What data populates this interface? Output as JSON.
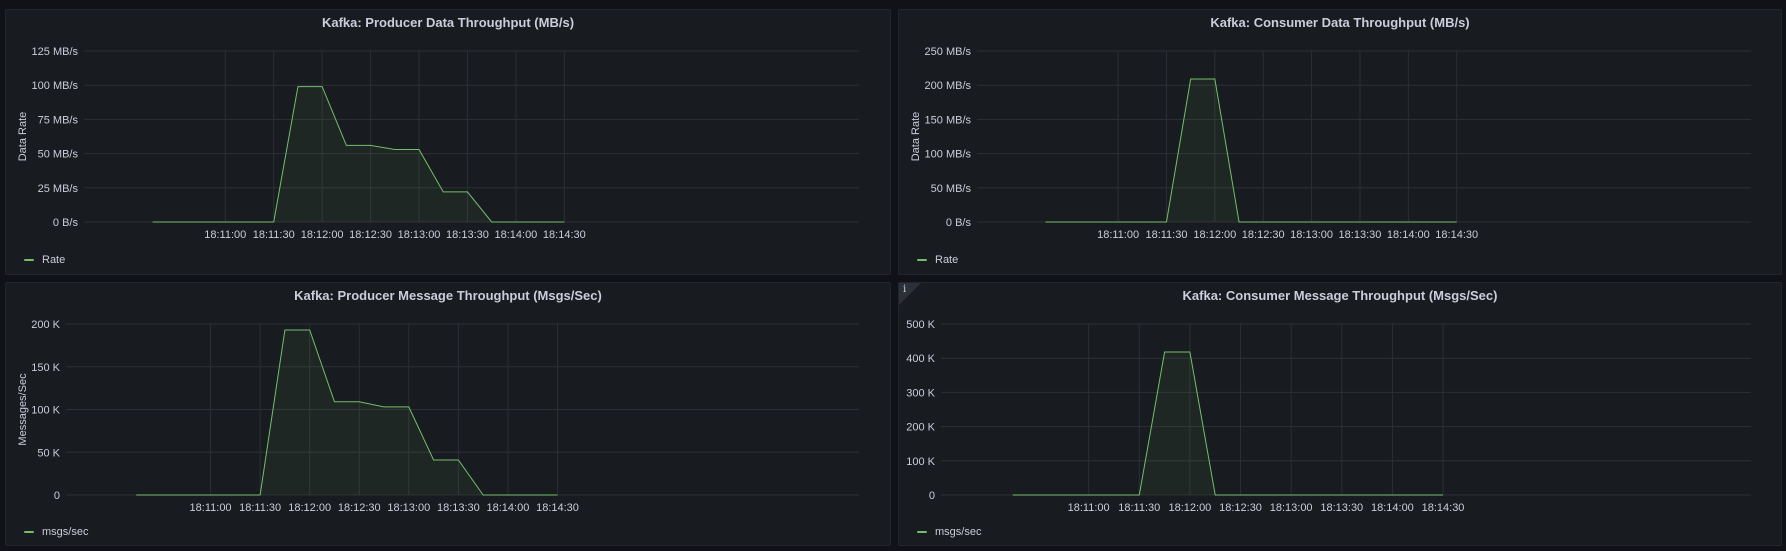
{
  "dashboard": {
    "accent": "#73bf69",
    "grid_color": "#2c2f35",
    "panels": [
      {
        "title": "Kafka: Producer Data Throughput (MB/s)",
        "legend": "Rate",
        "has_info": false
      },
      {
        "title": "Kafka: Consumer Data Throughput (MB/s)",
        "legend": "Rate",
        "has_info": false
      },
      {
        "title": "Kafka: Producer Message Throughput (Msgs/Sec)",
        "legend": "msgs/sec",
        "has_info": false
      },
      {
        "title": "Kafka: Consumer Message Throughput (Msgs/Sec)",
        "legend": "msgs/sec",
        "has_info": true,
        "info_icon": "i"
      }
    ]
  },
  "chart_data": [
    {
      "type": "area",
      "title": "Kafka: Producer Data Throughput (MB/s)",
      "ylabel": "Data Rate",
      "xlabel": "",
      "x_ticks": [
        "18:11:00",
        "18:11:30",
        "18:12:00",
        "18:12:30",
        "18:13:00",
        "18:13:30",
        "18:14:00",
        "18:14:30"
      ],
      "x_range_seconds": [
        -45,
        405
      ],
      "y_ticks": [
        "0 B/s",
        "25 MB/s",
        "50 MB/s",
        "75 MB/s",
        "100 MB/s",
        "125 MB/s"
      ],
      "ylim": [
        0,
        125
      ],
      "grid": true,
      "legend_position": "bottom-left",
      "series": [
        {
          "name": "Rate",
          "x": [
            "18:10:15",
            "18:11:30",
            "18:11:45",
            "18:12:00",
            "18:12:15",
            "18:12:30",
            "18:12:45",
            "18:13:00",
            "18:13:15",
            "18:13:30",
            "18:13:45",
            "18:14:30"
          ],
          "x_seconds": [
            -45,
            30,
            45,
            60,
            75,
            90,
            105,
            120,
            135,
            150,
            165,
            210
          ],
          "values": [
            0,
            0,
            99,
            99,
            56,
            56,
            53,
            53,
            22,
            22,
            0,
            0
          ]
        }
      ]
    },
    {
      "type": "area",
      "title": "Kafka: Consumer Data Throughput (MB/s)",
      "ylabel": "Data Rate",
      "xlabel": "",
      "x_ticks": [
        "18:11:00",
        "18:11:30",
        "18:12:00",
        "18:12:30",
        "18:13:00",
        "18:13:30",
        "18:14:00",
        "18:14:30"
      ],
      "y_ticks": [
        "0 B/s",
        "50 MB/s",
        "100 MB/s",
        "150 MB/s",
        "200 MB/s",
        "250 MB/s"
      ],
      "ylim": [
        0,
        250
      ],
      "grid": true,
      "legend_position": "bottom-left",
      "series": [
        {
          "name": "Rate",
          "x_seconds": [
            -45,
            30,
            45,
            60,
            75,
            210
          ],
          "values": [
            0,
            0,
            209,
            209,
            0,
            0
          ]
        }
      ]
    },
    {
      "type": "area",
      "title": "Kafka: Producer Message Throughput (Msgs/Sec)",
      "ylabel": "Messages/Sec",
      "xlabel": "",
      "x_ticks": [
        "18:11:00",
        "18:11:30",
        "18:12:00",
        "18:12:30",
        "18:13:00",
        "18:13:30",
        "18:14:00",
        "18:14:30"
      ],
      "y_ticks": [
        "0",
        "50 K",
        "100 K",
        "150 K",
        "200 K"
      ],
      "ylim": [
        0,
        200
      ],
      "grid": true,
      "legend_position": "bottom-left",
      "series": [
        {
          "name": "msgs/sec",
          "x_seconds": [
            -45,
            30,
            45,
            60,
            75,
            90,
            105,
            120,
            135,
            150,
            165,
            210
          ],
          "values": [
            0,
            0,
            193,
            193,
            109,
            109,
            103,
            103,
            41,
            41,
            0,
            0
          ]
        }
      ]
    },
    {
      "type": "area",
      "title": "Kafka: Consumer Message Throughput (Msgs/Sec)",
      "ylabel": "",
      "xlabel": "",
      "x_ticks": [
        "18:11:00",
        "18:11:30",
        "18:12:00",
        "18:12:30",
        "18:13:00",
        "18:13:30",
        "18:14:00",
        "18:14:30"
      ],
      "y_ticks": [
        "0",
        "100 K",
        "200 K",
        "300 K",
        "400 K",
        "500 K"
      ],
      "ylim": [
        0,
        500
      ],
      "grid": true,
      "legend_position": "bottom-left",
      "series": [
        {
          "name": "msgs/sec",
          "x_seconds": [
            -45,
            30,
            45,
            60,
            75,
            210
          ],
          "values": [
            0,
            0,
            418,
            418,
            0,
            0
          ]
        }
      ]
    }
  ]
}
